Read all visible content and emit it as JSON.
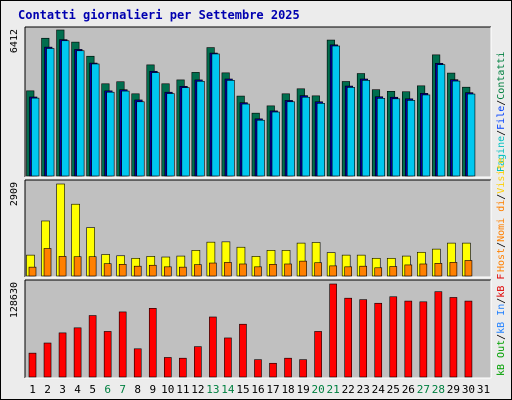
{
  "title": "Contatti giornalieri per Settembre 2025",
  "right_labels": {
    "top": [
      {
        "text": "Pagine",
        "color": "#00c0c0"
      },
      {
        "text": "File",
        "color": "#0040ff"
      },
      {
        "text": "Contatti",
        "color": "#008040"
      }
    ],
    "middle": [
      {
        "text": "Host",
        "color": "#ff8000"
      },
      {
        "text": "Nomi di",
        "color": "#ff8000"
      },
      {
        "text": "Visite",
        "color": "#ffd000"
      }
    ],
    "bottom": [
      {
        "text": "kB Out",
        "color": "#00a000"
      },
      {
        "text": "kB In",
        "color": "#2080ff"
      },
      {
        "text": "kB F",
        "color": "#e00000"
      }
    ]
  },
  "chart_data": {
    "type": "bar",
    "categories": [
      "1",
      "2",
      "3",
      "4",
      "5",
      "6",
      "7",
      "8",
      "9",
      "10",
      "11",
      "12",
      "13",
      "14",
      "15",
      "16",
      "17",
      "18",
      "19",
      "20",
      "21",
      "22",
      "23",
      "24",
      "25",
      "26",
      "27",
      "28",
      "29",
      "30",
      "31"
    ],
    "weekend_days": [
      "6",
      "7",
      "13",
      "14",
      "20",
      "21",
      "27",
      "28"
    ],
    "top": {
      "ymax": 6412,
      "series": [
        {
          "name": "Contatti",
          "color": "#006e4e",
          "values": [
            3740,
            6050,
            6412,
            5880,
            5260,
            4050,
            4140,
            3610,
            4880,
            4050,
            4220,
            4550,
            5640,
            4530,
            3510,
            2760,
            3080,
            3610,
            3830,
            3520,
            5970,
            4150,
            4500,
            3790,
            3720,
            3700,
            3960,
            5320,
            4520,
            3900,
            0
          ]
        },
        {
          "name": "File",
          "color": "#0000a0",
          "values": [
            3470,
            5660,
            5990,
            5560,
            4960,
            3740,
            3790,
            3340,
            4600,
            3680,
            3940,
            4220,
            5400,
            4260,
            3220,
            2510,
            2860,
            3320,
            3530,
            3260,
            5760,
            3950,
            4260,
            3480,
            3460,
            3390,
            3630,
            4950,
            4230,
            3660,
            0
          ]
        },
        {
          "name": "Pagine",
          "color": "#00c8f0",
          "values": [
            3420,
            5600,
            5940,
            5500,
            4920,
            3680,
            3730,
            3260,
            4540,
            3620,
            3880,
            4160,
            5360,
            4200,
            3160,
            2450,
            2810,
            3260,
            3460,
            3190,
            5710,
            3890,
            4200,
            3410,
            3390,
            3320,
            3560,
            4890,
            4170,
            3600,
            0
          ]
        }
      ]
    },
    "middle": {
      "ymax": 2909,
      "series": [
        {
          "name": "Visite",
          "color": "#ffff00",
          "values": [
            660,
            1740,
            2909,
            2270,
            1530,
            680,
            640,
            560,
            620,
            600,
            630,
            810,
            1070,
            1080,
            910,
            620,
            810,
            810,
            1040,
            1060,
            740,
            660,
            660,
            560,
            560,
            630,
            750,
            850,
            1040,
            1040,
            0
          ]
        },
        {
          "name": "Nomi di Host",
          "color": "#ff8000",
          "values": [
            280,
            870,
            620,
            610,
            610,
            390,
            370,
            310,
            340,
            290,
            280,
            360,
            410,
            430,
            380,
            290,
            370,
            380,
            470,
            420,
            320,
            290,
            310,
            260,
            300,
            350,
            380,
            400,
            430,
            490,
            0
          ]
        }
      ]
    },
    "bottom": {
      "ymax": 128630,
      "series": [
        {
          "name": "kB F",
          "color": "#ff0000",
          "values": [
            33000,
            47000,
            61000,
            68000,
            85000,
            63000,
            90000,
            39000,
            95000,
            27000,
            26000,
            42000,
            83000,
            54000,
            73000,
            24000,
            19000,
            26000,
            24000,
            63000,
            128630,
            109000,
            107000,
            102000,
            111000,
            105000,
            104000,
            118000,
            110000,
            105000,
            0
          ]
        }
      ]
    }
  }
}
